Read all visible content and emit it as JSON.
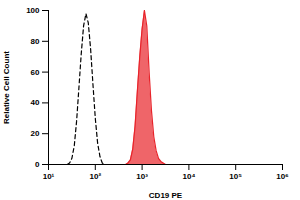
{
  "chart_data": {
    "type": "area",
    "xlabel": "CD19 PE",
    "ylabel": "Relative Cell Count",
    "log": "x",
    "xlim": [
      10,
      1000000
    ],
    "xticks": [
      {
        "value": 10,
        "label": "10¹"
      },
      {
        "value": 100,
        "label": "10²"
      },
      {
        "value": 1000,
        "label": "10³"
      },
      {
        "value": 10000,
        "label": "10⁴"
      },
      {
        "value": 100000,
        "label": "10⁵"
      },
      {
        "value": 1000000,
        "label": "10⁶"
      }
    ],
    "ylim": [
      0,
      100
    ],
    "yticks": [
      0,
      20,
      40,
      60,
      80,
      100
    ],
    "x": [
      25.1,
      28.2,
      31.6,
      35.5,
      39.8,
      44.7,
      50.1,
      56.2,
      63.1,
      70.8,
      79.4,
      89.1,
      100,
      112,
      126,
      141,
      158,
      178,
      200,
      224,
      251,
      282,
      316,
      355,
      398,
      447,
      501,
      562,
      631,
      708,
      794,
      891,
      1000,
      1122,
      1259,
      1413,
      1585,
      1778,
      1995,
      2239,
      2512,
      2818,
      3162
    ],
    "series": [
      {
        "type": "line",
        "color": "#000000",
        "line_style": "dashed",
        "values": [
          0,
          1,
          4,
          12,
          28,
          50,
          72,
          90,
          98,
          92,
          75,
          52,
          30,
          14,
          5,
          1,
          0,
          0,
          0,
          0,
          0,
          0,
          0,
          0,
          0,
          0,
          0,
          0,
          0,
          0,
          0,
          0,
          0,
          0,
          0,
          0,
          0,
          0,
          0,
          0,
          0,
          0,
          0
        ]
      },
      {
        "type": "area",
        "color": "#e8232a",
        "values": [
          0,
          0,
          0,
          0,
          0,
          0,
          0,
          0,
          0,
          0,
          0,
          0,
          0,
          0,
          0,
          0,
          0,
          0,
          0,
          0,
          0,
          0,
          0,
          0,
          0,
          0,
          1,
          3,
          10,
          25,
          48,
          70,
          88,
          100,
          90,
          60,
          35,
          18,
          9,
          4,
          2,
          1,
          0
        ]
      }
    ]
  }
}
